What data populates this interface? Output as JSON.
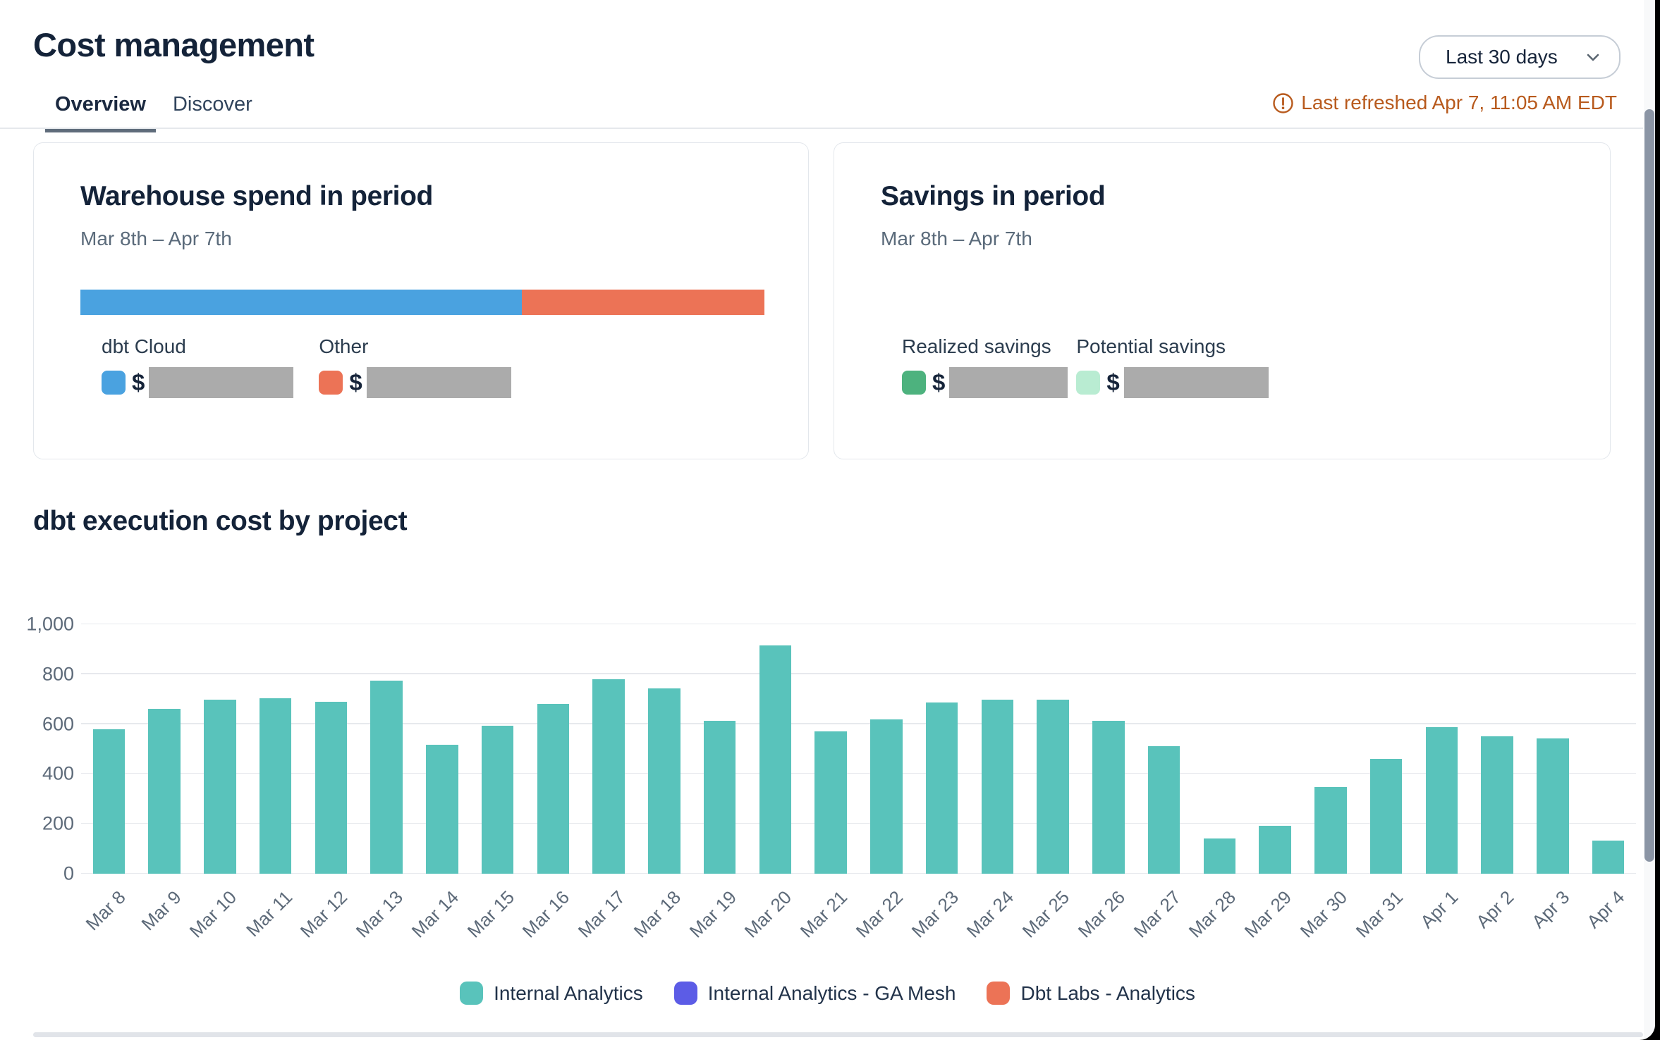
{
  "page": {
    "title": "Cost management",
    "date_range": {
      "value": "Last 30 days"
    },
    "last_refreshed": "Last refreshed Apr 7, 11:05 AM EDT",
    "tabs": [
      {
        "label": "Overview",
        "active": true
      },
      {
        "label": "Discover",
        "active": false
      }
    ]
  },
  "cards": {
    "warehouse": {
      "title": "Warehouse spend in period",
      "subtitle": "Mar 8th – Apr 7th",
      "segments": [
        {
          "label": "dbt Cloud",
          "color": "#4aa2e0",
          "percent": 64.5
        },
        {
          "label": "Other",
          "color": "#ec7356",
          "percent": 35.5
        }
      ],
      "legend": [
        {
          "label": "dbt Cloud",
          "color": "#4aa2e0",
          "currency": "$",
          "value_hidden": true
        },
        {
          "label": "Other",
          "color": "#ec7356",
          "currency": "$",
          "value_hidden": true
        }
      ]
    },
    "savings": {
      "title": "Savings in period",
      "subtitle": "Mar 8th – Apr 7th",
      "legend": [
        {
          "label": "Realized savings",
          "color": "#4db27e",
          "currency": "$",
          "value_hidden": true
        },
        {
          "label": "Potential savings",
          "color": "#b9ecd2",
          "currency": "$",
          "value_hidden": true
        }
      ]
    }
  },
  "chart_section": {
    "title": "dbt execution cost by project"
  },
  "chart_data": {
    "type": "bar",
    "title": "dbt execution cost by project",
    "categories": [
      "Mar 8",
      "Mar 9",
      "Mar 10",
      "Mar 11",
      "Mar 12",
      "Mar 13",
      "Mar 14",
      "Mar 15",
      "Mar 16",
      "Mar 17",
      "Mar 18",
      "Mar 19",
      "Mar 20",
      "Mar 21",
      "Mar 22",
      "Mar 23",
      "Mar 24",
      "Mar 25",
      "Mar 26",
      "Mar 27",
      "Mar 28",
      "Mar 29",
      "Mar 30",
      "Mar 31",
      "Apr 1",
      "Apr 2",
      "Apr 3",
      "Apr 4"
    ],
    "series": [
      {
        "name": "Internal Analytics",
        "color": "#59c3bb",
        "values": [
          578,
          660,
          698,
          703,
          688,
          775,
          518,
          592,
          680,
          780,
          744,
          614,
          916,
          572,
          618,
          686,
          699,
          697,
          612,
          510,
          141,
          193,
          348,
          460,
          587,
          551,
          543,
          132
        ]
      },
      {
        "name": "Internal Analytics - GA Mesh",
        "color": "#5c5ce6",
        "values": [
          0,
          0,
          0,
          0,
          0,
          0,
          0,
          0,
          0,
          0,
          0,
          0,
          0,
          0,
          0,
          0,
          0,
          0,
          0,
          0,
          0,
          0,
          0,
          0,
          0,
          0,
          0,
          0
        ]
      },
      {
        "name": "Dbt Labs - Analytics",
        "color": "#ec7356",
        "values": [
          0,
          0,
          0,
          0,
          0,
          0,
          0,
          0,
          0,
          0,
          0,
          0,
          0,
          0,
          0,
          0,
          0,
          0,
          0,
          0,
          0,
          0,
          0,
          0,
          0,
          0,
          0,
          0
        ]
      }
    ],
    "ylim": [
      0,
      1000
    ],
    "yticks": [
      {
        "label": "0",
        "value": 0
      },
      {
        "label": "200",
        "value": 200
      },
      {
        "label": "400",
        "value": 400
      },
      {
        "label": "600",
        "value": 600
      },
      {
        "label": "800",
        "value": 800
      },
      {
        "label": "1,000",
        "value": 1000
      }
    ],
    "grid": true,
    "legend_position": "bottom",
    "x_label_rotation": -45
  }
}
